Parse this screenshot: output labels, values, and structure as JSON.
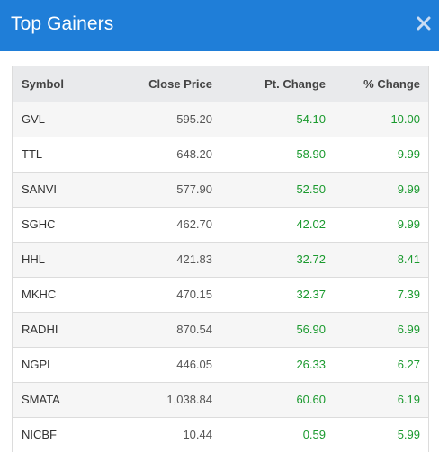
{
  "modal": {
    "title": "Top Gainers",
    "close_icon": "close-icon"
  },
  "colors": {
    "header_bg": "#1f7ed8",
    "gain_text": "#1a9a2e"
  },
  "table": {
    "headers": {
      "symbol": "Symbol",
      "close_price": "Close Price",
      "pt_change": "Pt. Change",
      "pct_change": "% Change"
    },
    "rows": [
      {
        "symbol": "GVL",
        "close_price": "595.20",
        "pt_change": "54.10",
        "pct_change": "10.00"
      },
      {
        "symbol": "TTL",
        "close_price": "648.20",
        "pt_change": "58.90",
        "pct_change": "9.99"
      },
      {
        "symbol": "SANVI",
        "close_price": "577.90",
        "pt_change": "52.50",
        "pct_change": "9.99"
      },
      {
        "symbol": "SGHC",
        "close_price": "462.70",
        "pt_change": "42.02",
        "pct_change": "9.99"
      },
      {
        "symbol": "HHL",
        "close_price": "421.83",
        "pt_change": "32.72",
        "pct_change": "8.41"
      },
      {
        "symbol": "MKHC",
        "close_price": "470.15",
        "pt_change": "32.37",
        "pct_change": "7.39"
      },
      {
        "symbol": "RADHI",
        "close_price": "870.54",
        "pt_change": "56.90",
        "pct_change": "6.99"
      },
      {
        "symbol": "NGPL",
        "close_price": "446.05",
        "pt_change": "26.33",
        "pct_change": "6.27"
      },
      {
        "symbol": "SMATA",
        "close_price": "1,038.84",
        "pt_change": "60.60",
        "pct_change": "6.19"
      },
      {
        "symbol": "NICBF",
        "close_price": "10.44",
        "pt_change": "0.59",
        "pct_change": "5.99"
      }
    ]
  }
}
